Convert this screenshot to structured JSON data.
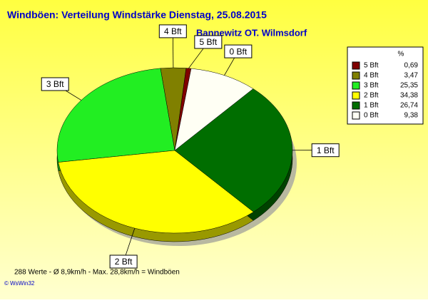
{
  "chart_data": {
    "type": "pie",
    "title": "Windböen: Verteilung Windstärke  Dienstag, 25.08.2015",
    "subtitle": "Bannewitz OT. Wilmsdorf",
    "legend_header": "%",
    "categories": [
      "5 Bft",
      "4 Bft",
      "3 Bft",
      "2 Bft",
      "1 Bft",
      "0 Bft"
    ],
    "values": [
      0.69,
      3.47,
      25.35,
      34.38,
      26.74,
      9.38
    ],
    "value_labels": [
      "0,69",
      "3,47",
      "25,35",
      "34,38",
      "26,74",
      "9,38"
    ],
    "colors": [
      "#800000",
      "#808000",
      "#22ee22",
      "#ffff00",
      "#006e00",
      "#fffff4"
    ],
    "legend": "right",
    "footer": "288 Werte   -   Ø 8,9km/h  -  Max. 28,8km/h = Windböen",
    "credit": "© WsWin32"
  }
}
